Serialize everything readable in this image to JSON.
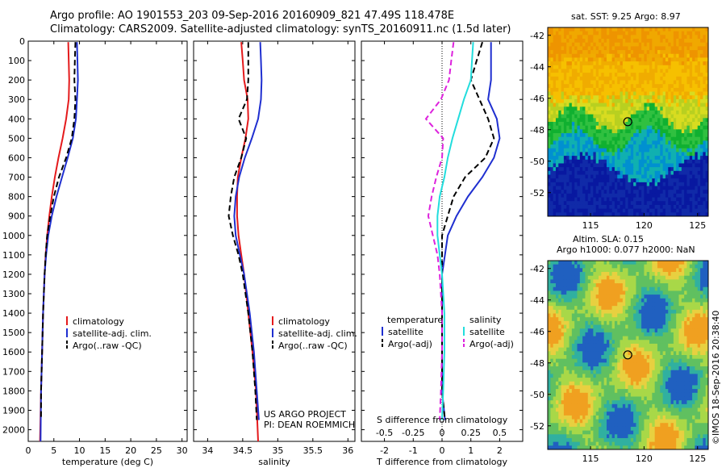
{
  "header": {
    "line1": "Argo profile: AO 1901553_203 09-Sep-2016 20160909_821 47.49S 118.478E",
    "line2": "Climatology: CARS2009. Satellite-adjusted climatology: synTS_20160911.nc (1.5d later)"
  },
  "colors": {
    "climatology": "#e41a1c",
    "satellite": "#1f2fd0",
    "argo": "#000000",
    "salinity_satellite": "#22dddd",
    "salinity_argo": "#dd22dd"
  },
  "chart_data": [
    {
      "type": "line",
      "panel": "temperature",
      "xlabel": "temperature (deg C)",
      "xlim": [
        0,
        31
      ],
      "xticks": [
        0,
        5,
        10,
        15,
        20,
        25,
        30
      ],
      "ylim": [
        2060,
        0
      ],
      "yticks": [
        0,
        100,
        200,
        300,
        400,
        500,
        600,
        700,
        800,
        900,
        1000,
        1100,
        1200,
        1300,
        1400,
        1500,
        1600,
        1700,
        1800,
        1900,
        2000
      ],
      "legend": [
        "climatology",
        "satellite-adj. clim.",
        "Argo(..raw -QC)"
      ],
      "legend_position": "bottom-center",
      "series": [
        {
          "name": "climatology",
          "style": "solid",
          "depth": [
            5,
            100,
            200,
            300,
            400,
            500,
            600,
            700,
            800,
            900,
            1000,
            1100,
            1200,
            1400,
            1600,
            1800,
            2060
          ],
          "values": [
            7.8,
            7.9,
            8.0,
            7.9,
            7.4,
            6.7,
            5.9,
            5.2,
            4.6,
            4.1,
            3.7,
            3.4,
            3.2,
            2.9,
            2.7,
            2.5,
            2.3
          ]
        },
        {
          "name": "satellite-adj. clim.",
          "style": "solid",
          "depth": [
            5,
            100,
            200,
            300,
            400,
            500,
            600,
            700,
            800,
            900,
            1000,
            1100,
            1200,
            1400,
            1600,
            1800,
            2060
          ],
          "values": [
            9.5,
            9.6,
            9.7,
            9.5,
            9.3,
            8.7,
            7.7,
            6.6,
            5.5,
            4.6,
            3.9,
            3.5,
            3.2,
            2.9,
            2.7,
            2.5,
            2.4
          ]
        },
        {
          "name": "Argo(..raw -QC)",
          "style": "dashed",
          "depth": [
            5,
            100,
            200,
            300,
            400,
            500,
            600,
            700,
            800,
            900,
            1000,
            1100,
            1200,
            1400,
            1600,
            1800,
            1950
          ],
          "values": [
            9.2,
            9.1,
            9.0,
            9.2,
            9.0,
            8.5,
            7.4,
            6.0,
            5.0,
            4.3,
            3.7,
            3.4,
            3.2,
            2.9,
            2.7,
            2.5,
            2.5
          ]
        }
      ]
    },
    {
      "type": "line",
      "panel": "salinity",
      "xlabel": "salinity",
      "xlim": [
        33.8,
        36.1
      ],
      "xticks": [
        34,
        34.5,
        35,
        35.5,
        36
      ],
      "ylim": [
        2060,
        0
      ],
      "legend": [
        "climatology",
        "satellite-adj. clim.",
        "Argo(..raw -QC)"
      ],
      "legend_position": "bottom-right",
      "annotation_lines": [
        "US ARGO PROJECT",
        "PI: DEAN ROEMMICH"
      ],
      "series": [
        {
          "name": "climatology",
          "style": "solid",
          "depth": [
            5,
            100,
            200,
            300,
            400,
            500,
            600,
            700,
            800,
            900,
            1000,
            1100,
            1200,
            1400,
            1600,
            1800,
            2060
          ],
          "values": [
            34.48,
            34.5,
            34.52,
            34.57,
            34.58,
            34.54,
            34.48,
            34.43,
            34.42,
            34.42,
            34.44,
            34.48,
            34.52,
            34.58,
            34.64,
            34.69,
            34.72
          ]
        },
        {
          "name": "satellite-adj. clim.",
          "style": "solid",
          "depth": [
            5,
            100,
            200,
            300,
            400,
            500,
            600,
            700,
            800,
            900,
            1000,
            1100,
            1200,
            1400,
            1600,
            1800,
            1950
          ],
          "values": [
            34.75,
            34.76,
            34.77,
            34.76,
            34.72,
            34.63,
            34.53,
            34.45,
            34.4,
            34.38,
            34.4,
            34.46,
            34.52,
            34.6,
            34.66,
            34.7,
            34.73
          ]
        },
        {
          "name": "Argo(..raw -QC)",
          "style": "dashed",
          "depth": [
            5,
            100,
            200,
            300,
            400,
            500,
            600,
            700,
            800,
            900,
            1000,
            1100,
            1200,
            1400,
            1600,
            1800,
            1950
          ],
          "values": [
            34.58,
            34.58,
            34.58,
            34.56,
            34.44,
            34.55,
            34.48,
            34.38,
            34.33,
            34.3,
            34.36,
            34.44,
            34.5,
            34.58,
            34.64,
            34.68,
            34.7
          ]
        }
      ]
    },
    {
      "type": "line",
      "panel": "difference",
      "xlabel": "T difference from climatology",
      "xlabel_top": "S difference from climatology",
      "xlim": [
        -2.8,
        2.8
      ],
      "xticks": [
        -2,
        -1,
        0,
        1,
        2
      ],
      "xticks_top": [
        -0.5,
        -0.25,
        0,
        0.25,
        0.5
      ],
      "xticklabels_top": [
        "-0.5",
        "-0.25",
        "0",
        "0.25",
        "0.5"
      ],
      "ylim": [
        2060,
        0
      ],
      "legend_headings": [
        "temperature",
        "salinity"
      ],
      "legend": [
        "satellite",
        "Argo(-adj)",
        "satellite",
        "Argo(-adj)"
      ],
      "legend_position": "bottom",
      "series": [
        {
          "name": "temperature satellite",
          "style": "solid",
          "depth": [
            5,
            100,
            200,
            300,
            400,
            500,
            600,
            700,
            800,
            900,
            1000,
            1100,
            1200,
            1400,
            1600,
            1800,
            1950
          ],
          "values": [
            1.7,
            1.7,
            1.7,
            1.6,
            1.9,
            2.0,
            1.8,
            1.4,
            0.9,
            0.5,
            0.2,
            0.1,
            0.0,
            0.0,
            0.0,
            0.0,
            0.1
          ]
        },
        {
          "name": "temperature Argo(-adj)",
          "style": "dashed",
          "depth": [
            5,
            100,
            200,
            300,
            400,
            500,
            600,
            700,
            800,
            900,
            1000,
            1100,
            1200,
            1400,
            1600,
            1800,
            1950
          ],
          "values": [
            1.4,
            1.2,
            1.0,
            1.3,
            1.6,
            1.8,
            1.5,
            0.8,
            0.4,
            0.2,
            0.0,
            0.0,
            0.0,
            0.0,
            0.0,
            0.0,
            0.1
          ]
        },
        {
          "name": "salinity satellite",
          "style": "solid",
          "depth": [
            5,
            100,
            200,
            300,
            400,
            500,
            600,
            700,
            800,
            900,
            1000,
            1100,
            1200,
            1400,
            1600,
            1800,
            1950
          ],
          "values": [
            0.27,
            0.26,
            0.25,
            0.19,
            0.14,
            0.09,
            0.05,
            0.02,
            -0.02,
            -0.04,
            -0.04,
            -0.02,
            0.0,
            0.02,
            0.02,
            0.01,
            0.0
          ]
        },
        {
          "name": "salinity Argo(-adj)",
          "style": "dashed",
          "depth": [
            5,
            100,
            200,
            300,
            400,
            500,
            600,
            700,
            800,
            900,
            1000,
            1100,
            1200,
            1400,
            1600,
            1800,
            1950
          ],
          "values": [
            0.1,
            0.08,
            0.06,
            -0.01,
            -0.14,
            0.01,
            0.0,
            -0.05,
            -0.09,
            -0.12,
            -0.08,
            -0.04,
            -0.02,
            0.0,
            0.0,
            -0.01,
            -0.02
          ]
        }
      ]
    },
    {
      "type": "heatmap",
      "panel": "sst_map",
      "title": "sat. SST: 9.25 Argo: 8.97",
      "xlim": [
        111,
        126
      ],
      "ylim": [
        -53.5,
        -41.5
      ],
      "xticks": [
        115,
        120,
        125
      ],
      "yticks": [
        -42,
        -44,
        -46,
        -48,
        -50,
        -52
      ],
      "marker": {
        "lon": 118.478,
        "lat": -47.49
      }
    },
    {
      "type": "heatmap",
      "panel": "sla_map",
      "title_lines": [
        "Altim. SLA: 0.15",
        "Argo h1000: 0.077 h2000: NaN"
      ],
      "xlim": [
        111,
        126
      ],
      "ylim": [
        -53.5,
        -41.5
      ],
      "xticks": [
        115,
        120,
        125
      ],
      "yticks": [
        -42,
        -44,
        -46,
        -48,
        -50,
        -52
      ],
      "marker": {
        "lon": 118.478,
        "lat": -47.49
      }
    }
  ],
  "credit": "©IMOS 18-Sep-2016 20:38:40"
}
